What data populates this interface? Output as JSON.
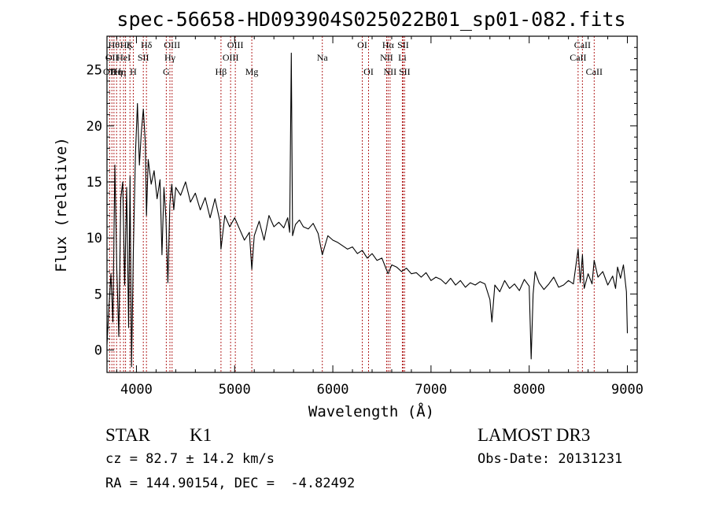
{
  "chart_data": {
    "type": "line",
    "title": "spec-56658-HD093904S025022B01_sp01-082.fits",
    "xlabel": "Wavelength (Å)",
    "ylabel": "Flux (relative)",
    "xlim": [
      3700,
      9100
    ],
    "ylim": [
      -2,
      28
    ],
    "xticks": [
      4000,
      5000,
      6000,
      7000,
      8000,
      9000
    ],
    "yticks": [
      0,
      5,
      10,
      15,
      20,
      25
    ],
    "xtick_labels": [
      "4000",
      "5000",
      "6000",
      "7000",
      "8000",
      "9000"
    ],
    "ytick_labels": [
      "0",
      "5",
      "10",
      "15",
      "20",
      "25"
    ],
    "grid": false,
    "line_color": "#000000",
    "marker_line_color": "#b22222",
    "series": [
      {
        "x": [
          3700,
          3720,
          3740,
          3760,
          3780,
          3800,
          3820,
          3840,
          3860,
          3880,
          3900,
          3920,
          3935,
          3950,
          3968,
          3990,
          4010,
          4030,
          4050,
          4070,
          4090,
          4102,
          4120,
          4150,
          4180,
          4210,
          4240,
          4260,
          4280,
          4300,
          4320,
          4340,
          4360,
          4380,
          4400,
          4450,
          4500,
          4550,
          4600,
          4650,
          4700,
          4750,
          4800,
          4850,
          4861,
          4900,
          4950,
          5000,
          5050,
          5100,
          5150,
          5175,
          5200,
          5250,
          5300,
          5350,
          5400,
          5450,
          5500,
          5540,
          5560,
          5577,
          5590,
          5620,
          5660,
          5700,
          5750,
          5800,
          5850,
          5893,
          5950,
          6000,
          6050,
          6100,
          6150,
          6200,
          6250,
          6300,
          6350,
          6400,
          6450,
          6500,
          6563,
          6600,
          6650,
          6700,
          6750,
          6800,
          6850,
          6900,
          6950,
          7000,
          7050,
          7100,
          7150,
          7200,
          7250,
          7300,
          7350,
          7400,
          7450,
          7500,
          7550,
          7600,
          7620,
          7650,
          7700,
          7750,
          7800,
          7850,
          7900,
          7950,
          8000,
          8020,
          8040,
          8060,
          8100,
          8150,
          8200,
          8250,
          8300,
          8350,
          8400,
          8450,
          8498,
          8520,
          8542,
          8560,
          8600,
          8640,
          8662,
          8700,
          8750,
          8800,
          8850,
          8880,
          8900,
          8930,
          8960,
          8990,
          9000
        ],
        "y": [
          0.5,
          3.8,
          6.8,
          2.5,
          16.5,
          7.2,
          1.2,
          13.5,
          15.0,
          5.8,
          14.5,
          2.0,
          15.5,
          -1.5,
          8.8,
          17.5,
          22.0,
          16.5,
          19.5,
          21.5,
          18.5,
          12.0,
          17.0,
          14.8,
          16.0,
          13.5,
          15.2,
          8.5,
          14.5,
          11.8,
          6.0,
          13.0,
          14.8,
          12.5,
          14.5,
          13.8,
          15.0,
          13.2,
          14.0,
          12.5,
          13.6,
          11.8,
          13.5,
          11.5,
          9.0,
          12.0,
          11.0,
          11.8,
          10.8,
          9.8,
          10.5,
          7.2,
          10.2,
          11.5,
          9.8,
          12.0,
          11.0,
          11.4,
          10.9,
          11.8,
          10.5,
          26.5,
          10.2,
          11.2,
          11.6,
          11.0,
          10.8,
          11.3,
          10.4,
          8.5,
          10.2,
          9.8,
          9.6,
          9.3,
          9.0,
          9.2,
          8.6,
          8.9,
          8.2,
          8.6,
          8.0,
          8.2,
          6.8,
          7.6,
          7.4,
          7.0,
          7.3,
          6.8,
          6.9,
          6.5,
          6.9,
          6.2,
          6.5,
          6.3,
          5.9,
          6.4,
          5.8,
          6.2,
          5.6,
          6.0,
          5.8,
          6.1,
          5.9,
          4.5,
          2.5,
          5.8,
          5.2,
          6.2,
          5.5,
          5.9,
          5.3,
          6.3,
          5.7,
          -0.8,
          5.0,
          7.0,
          6.0,
          5.4,
          5.9,
          6.5,
          5.6,
          5.8,
          6.2,
          5.9,
          9.0,
          6.0,
          8.5,
          5.5,
          6.8,
          5.9,
          8.0,
          6.5,
          7.0,
          5.8,
          6.6,
          5.5,
          7.4,
          6.4,
          7.6,
          5.2,
          1.5
        ]
      }
    ],
    "annotations": {
      "line_markers": [
        {
          "x": 3727,
          "label": "OII",
          "row": 3
        },
        {
          "x": 3750,
          "label": "OII",
          "row": 2
        },
        {
          "x": 3771,
          "label": "Hθ",
          "row": 1
        },
        {
          "x": 3798,
          "label": "Hη",
          "row": 3
        },
        {
          "x": 3835,
          "label": "Hη",
          "row": 3
        },
        {
          "x": 3869,
          "label": "HeI",
          "row": 2
        },
        {
          "x": 3889,
          "label": "Hζ",
          "row": 1
        },
        {
          "x": 3934,
          "label": "K",
          "row": 1
        },
        {
          "x": 3968,
          "label": "H",
          "row": 3
        },
        {
          "x": 4070,
          "label": "SII",
          "row": 2
        },
        {
          "x": 4102,
          "label": "Hδ",
          "row": 1
        },
        {
          "x": 4304,
          "label": "G",
          "row": 3
        },
        {
          "x": 4341,
          "label": "Hγ",
          "row": 2
        },
        {
          "x": 4363,
          "label": "OIII",
          "row": 1
        },
        {
          "x": 4861,
          "label": "Hβ",
          "row": 3
        },
        {
          "x": 4959,
          "label": "OIII",
          "row": 2
        },
        {
          "x": 5007,
          "label": "OIII",
          "row": 1
        },
        {
          "x": 5175,
          "label": "Mg",
          "row": 3
        },
        {
          "x": 5893,
          "label": "Na",
          "row": 2
        },
        {
          "x": 6300,
          "label": "OI",
          "row": 1
        },
        {
          "x": 6364,
          "label": "OI",
          "row": 3
        },
        {
          "x": 6548,
          "label": "NII",
          "row": 2
        },
        {
          "x": 6563,
          "label": "Hα",
          "row": 1
        },
        {
          "x": 6583,
          "label": "NII",
          "row": 3
        },
        {
          "x": 6708,
          "label": "Li",
          "row": 2
        },
        {
          "x": 6716,
          "label": "SII",
          "row": 1
        },
        {
          "x": 6731,
          "label": "SII",
          "row": 3
        },
        {
          "x": 8498,
          "label": "CaII",
          "row": 2
        },
        {
          "x": 8542,
          "label": "CaII",
          "row": 1
        },
        {
          "x": 8662,
          "label": "CaII",
          "row": 3
        }
      ]
    }
  },
  "info": {
    "object_class": "STAR",
    "subclass": "K1",
    "survey": "LAMOST DR3",
    "redshift_line": "cz = 82.7 ± 14.2 km/s",
    "obs_date_line": "Obs-Date: 20131231",
    "coords_line": "RA = 144.90154, DEC =  -4.82492"
  }
}
